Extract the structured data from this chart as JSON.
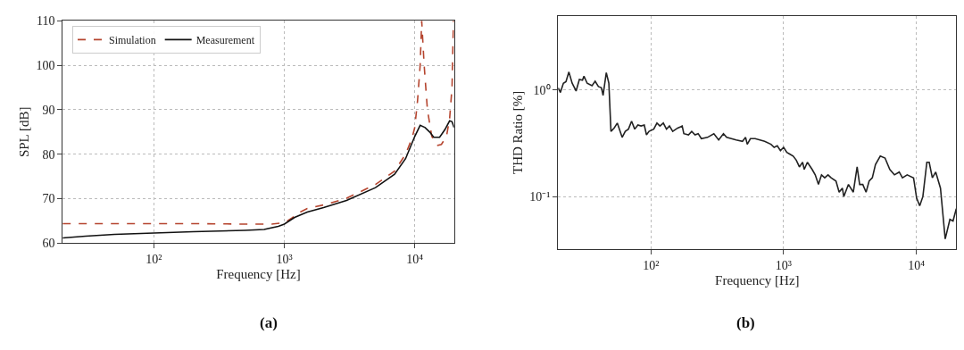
{
  "chart_data": [
    {
      "type": "line",
      "title": "(a)",
      "xlabel": "Frequency [Hz]",
      "ylabel": "SPL [dB]",
      "log": "x",
      "grid": true,
      "legend": "top left",
      "xlim": [
        20,
        20000
      ],
      "ylim": [
        60,
        110
      ],
      "xticks": [
        {
          "value": 100,
          "label": "10²"
        },
        {
          "value": 1000,
          "label": "10³"
        },
        {
          "value": 10000,
          "label": "10⁴"
        }
      ],
      "yticks": [
        60,
        70,
        80,
        90,
        100,
        110
      ],
      "series": [
        {
          "name": "Simulation",
          "color": "#b5442e",
          "line_style": "dashed",
          "x": [
            20,
            50,
            100,
            200,
            500,
            800,
            1000,
            1150,
            1300,
            1500,
            2000,
            3000,
            5000,
            7000,
            8500,
            9500,
            10000,
            10500,
            11000,
            11300,
            11800,
            12500,
            13500,
            15000,
            16000,
            17500,
            18500,
            19300,
            19800
          ],
          "values": [
            64.4,
            64.4,
            64.4,
            64.4,
            64.3,
            64.3,
            64.6,
            65.7,
            66.9,
            67.8,
            68.6,
            70.1,
            73.2,
            76.2,
            80,
            83.5,
            86,
            92,
            100,
            110,
            100,
            90,
            84,
            82,
            82.2,
            84,
            88,
            95,
            110
          ]
        },
        {
          "name": "Measurement",
          "color": "#111111",
          "line_style": "solid",
          "x": [
            20,
            30,
            50,
            100,
            200,
            500,
            700,
            900,
            1000,
            1200,
            1500,
            2000,
            3000,
            5000,
            7000,
            8500,
            10000,
            11000,
            12000,
            13000,
            14000,
            15500,
            17000,
            18500,
            19300,
            20000
          ],
          "values": [
            61.2,
            61.6,
            62,
            62.3,
            62.6,
            62.9,
            63.1,
            63.8,
            64.3,
            65.8,
            67,
            68,
            69.6,
            72.5,
            75.5,
            79,
            84,
            86.5,
            86,
            85,
            83.8,
            83.8,
            85.5,
            87.5,
            87.3,
            86
          ]
        }
      ]
    },
    {
      "type": "line",
      "title": "(b)",
      "xlabel": "Frequency [Hz]",
      "ylabel": "THD Ratio [%]",
      "log": "xy",
      "grid": true,
      "xlim": [
        20,
        20000
      ],
      "ylim": [
        0.032,
        5
      ],
      "xticks": [
        {
          "value": 100,
          "label": "10²"
        },
        {
          "value": 1000,
          "label": "10³"
        },
        {
          "value": 10000,
          "label": "10⁴"
        }
      ],
      "yticks": [
        {
          "value": 0.1,
          "label": "10⁻¹"
        },
        {
          "value": 1,
          "label": "10⁰"
        }
      ],
      "series": [
        {
          "color": "#222222",
          "line_style": "solid",
          "x": [
            20.0,
            20.8,
            21.9,
            22.9,
            24.1,
            25.5,
            27.3,
            28.9,
            30.5,
            31.3,
            33.1,
            36.0,
            38.0,
            40.2,
            42.4,
            43.6,
            46.1,
            48.2,
            50.0,
            52.8,
            55.8,
            60.7,
            64.1,
            67.7,
            71.5,
            75.5,
            79.8,
            84.3,
            89.1,
            92.6,
            96.8,
            105,
            111,
            117,
            124,
            131,
            138,
            146,
            159,
            172,
            177,
            192,
            203,
            215,
            227,
            240,
            267,
            298,
            324,
            352,
            372,
            439,
            490,
            517,
            532,
            562,
            610,
            719,
            803,
            848,
            896,
            946,
            1000,
            1057,
            1117,
            1180,
            1245,
            1315,
            1390,
            1430,
            1510,
            1640,
            1730,
            1830,
            1930,
            2040,
            2160,
            2280,
            2480,
            2620,
            2770,
            2840,
            3080,
            3350,
            3580,
            3740,
            3950,
            4180,
            4410,
            4660,
            4920,
            5350,
            5810,
            6310,
            6840,
            7430,
            7860,
            8530,
            9530,
            10050,
            10600,
            11200,
            12000,
            12500,
            13200,
            14000,
            15200,
            16500,
            17900,
            18900,
            20000
          ],
          "values": [
            1.05,
            0.95,
            1.16,
            1.2,
            1.48,
            1.16,
            0.98,
            1.26,
            1.24,
            1.35,
            1.16,
            1.1,
            1.21,
            1.08,
            1.05,
            0.89,
            1.46,
            1.16,
            0.41,
            0.44,
            0.49,
            0.36,
            0.41,
            0.43,
            0.51,
            0.43,
            0.47,
            0.46,
            0.47,
            0.38,
            0.41,
            0.43,
            0.49,
            0.46,
            0.49,
            0.43,
            0.46,
            0.41,
            0.44,
            0.46,
            0.39,
            0.38,
            0.41,
            0.38,
            0.39,
            0.35,
            0.36,
            0.39,
            0.34,
            0.39,
            0.36,
            0.34,
            0.33,
            0.36,
            0.31,
            0.35,
            0.35,
            0.33,
            0.31,
            0.29,
            0.3,
            0.27,
            0.29,
            0.26,
            0.25,
            0.24,
            0.22,
            0.19,
            0.21,
            0.18,
            0.21,
            0.18,
            0.16,
            0.13,
            0.16,
            0.15,
            0.16,
            0.15,
            0.14,
            0.11,
            0.12,
            0.1,
            0.13,
            0.11,
            0.19,
            0.13,
            0.13,
            0.11,
            0.14,
            0.15,
            0.2,
            0.24,
            0.23,
            0.18,
            0.16,
            0.17,
            0.15,
            0.16,
            0.15,
            0.097,
            0.082,
            0.1,
            0.21,
            0.21,
            0.15,
            0.17,
            0.12,
            0.04,
            0.061,
            0.059,
            0.077
          ]
        }
      ]
    }
  ]
}
